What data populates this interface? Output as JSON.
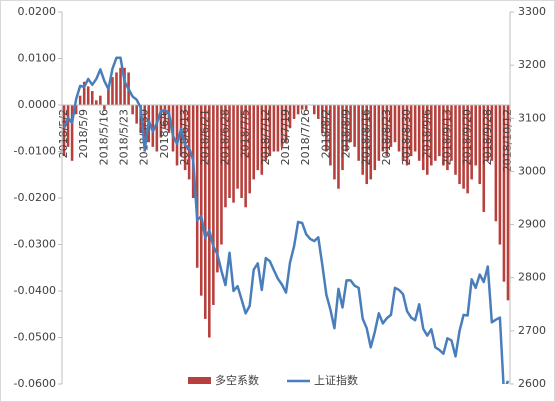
{
  "chart_data": {
    "type": "bar-line",
    "categories": [
      "2018/5/2",
      null,
      null,
      null,
      null,
      "2018/5/9",
      null,
      null,
      null,
      null,
      "2018/5/16",
      null,
      null,
      null,
      null,
      "2018/5/23",
      null,
      null,
      null,
      null,
      "2018/5/30",
      null,
      null,
      null,
      null,
      "2018/6/6",
      null,
      null,
      null,
      null,
      "2018/6/13",
      null,
      null,
      null,
      null,
      "2018/6/21",
      null,
      null,
      null,
      null,
      "2018/6/28",
      null,
      null,
      null,
      null,
      "2018/7/5",
      null,
      null,
      null,
      null,
      "2018/7/12",
      null,
      null,
      null,
      null,
      "2018/7/19",
      null,
      null,
      null,
      null,
      "2018/7/26",
      null,
      null,
      null,
      null,
      "2018/8/2",
      null,
      null,
      null,
      null,
      "2018/8/9",
      null,
      null,
      null,
      null,
      "2018/8/16",
      null,
      null,
      null,
      null,
      "2018/8/23",
      null,
      null,
      null,
      null,
      "2018/8/30",
      null,
      null,
      null,
      null,
      "2018/9/6",
      null,
      null,
      null,
      null,
      "2018/9/13",
      null,
      null,
      null,
      null,
      "2018/9/20",
      null,
      null,
      null,
      null,
      "2018/9/28",
      null,
      null,
      null,
      null,
      "2018/10/12"
    ],
    "series": [
      {
        "name": "多空系数",
        "color": "#b8403c",
        "axis": "y",
        "values": [
          -0.011,
          -0.009,
          -0.012,
          -0.002,
          0.002,
          0.005,
          0.004,
          0.003,
          0.001,
          0.002,
          -0.001,
          0.004,
          0.006,
          0.007,
          0.008,
          0.008,
          0.007,
          -0.002,
          -0.004,
          -0.006,
          -0.01,
          -0.008,
          -0.009,
          -0.01,
          -0.007,
          -0.005,
          -0.006,
          -0.01,
          -0.013,
          -0.011,
          -0.014,
          -0.016,
          -0.02,
          -0.035,
          -0.041,
          -0.046,
          -0.05,
          -0.043,
          -0.036,
          -0.03,
          -0.022,
          -0.02,
          -0.021,
          -0.018,
          -0.02,
          -0.022,
          -0.019,
          -0.016,
          -0.014,
          -0.015,
          -0.012,
          -0.011,
          -0.01,
          -0.01,
          -0.009,
          -0.008,
          -0.005,
          -0.003,
          -0.002,
          -0.001,
          -0.001,
          0.0,
          -0.002,
          -0.003,
          -0.006,
          -0.01,
          -0.013,
          -0.016,
          -0.018,
          -0.014,
          -0.01,
          -0.008,
          -0.009,
          -0.012,
          -0.015,
          -0.017,
          -0.016,
          -0.014,
          -0.012,
          -0.01,
          -0.011,
          -0.009,
          -0.008,
          -0.01,
          -0.012,
          -0.013,
          -0.011,
          -0.01,
          -0.012,
          -0.014,
          -0.015,
          -0.013,
          -0.012,
          -0.011,
          -0.013,
          -0.014,
          -0.012,
          -0.015,
          -0.017,
          -0.018,
          -0.019,
          -0.016,
          -0.013,
          -0.017,
          -0.023,
          -0.012,
          -0.012,
          -0.025,
          -0.03,
          -0.038,
          -0.042
        ]
      },
      {
        "name": "上证指数",
        "color": "#4a7ebb",
        "axis": "y2",
        "values": [
          3081,
          3101,
          3091,
          3136,
          3161,
          3159,
          3174,
          3163,
          3174,
          3192,
          3170,
          3155,
          3193,
          3214,
          3214,
          3169,
          3155,
          3141,
          3135,
          3120,
          3041,
          3095,
          3075,
          3091,
          3114,
          3115,
          3110,
          3067,
          3052,
          3080,
          3049,
          3044,
          3021,
          2908,
          2916,
          2875,
          2889,
          2859,
          2844,
          2813,
          2786,
          2847,
          2775,
          2784,
          2759,
          2733,
          2747,
          2815,
          2827,
          2777,
          2837,
          2831,
          2814,
          2798,
          2787,
          2772,
          2829,
          2859,
          2905,
          2903,
          2882,
          2873,
          2869,
          2876,
          2824,
          2768,
          2740,
          2705,
          2779,
          2744,
          2795,
          2795,
          2785,
          2781,
          2723,
          2705,
          2669,
          2698,
          2733,
          2714,
          2724,
          2730,
          2781,
          2777,
          2769,
          2737,
          2725,
          2720,
          2750,
          2704,
          2691,
          2703,
          2669,
          2664,
          2657,
          2686,
          2682,
          2652,
          2700,
          2730,
          2729,
          2797,
          2781,
          2806,
          2792,
          2821,
          2716,
          2721,
          2725,
          2583,
          2606
        ]
      }
    ],
    "ylim": [
      -0.06,
      0.02
    ],
    "yticks": [
      {
        "value": -0.06,
        "label": "-0.0600"
      },
      {
        "value": -0.05,
        "label": "-0.0500"
      },
      {
        "value": -0.04,
        "label": "-0.0400"
      },
      {
        "value": -0.03,
        "label": "-0.0300"
      },
      {
        "value": -0.02,
        "label": "-0.0200"
      },
      {
        "value": -0.01,
        "label": "-0.0100"
      },
      {
        "value": 0,
        "label": "0.0000"
      },
      {
        "value": 0.01,
        "label": "0.0100"
      },
      {
        "value": 0.02,
        "label": "0.0200"
      }
    ],
    "y2lim": [
      2600,
      3300
    ],
    "y2ticks": [
      2600,
      2700,
      2800,
      2900,
      3000,
      3100,
      3200,
      3300
    ],
    "legend": "bottom"
  }
}
